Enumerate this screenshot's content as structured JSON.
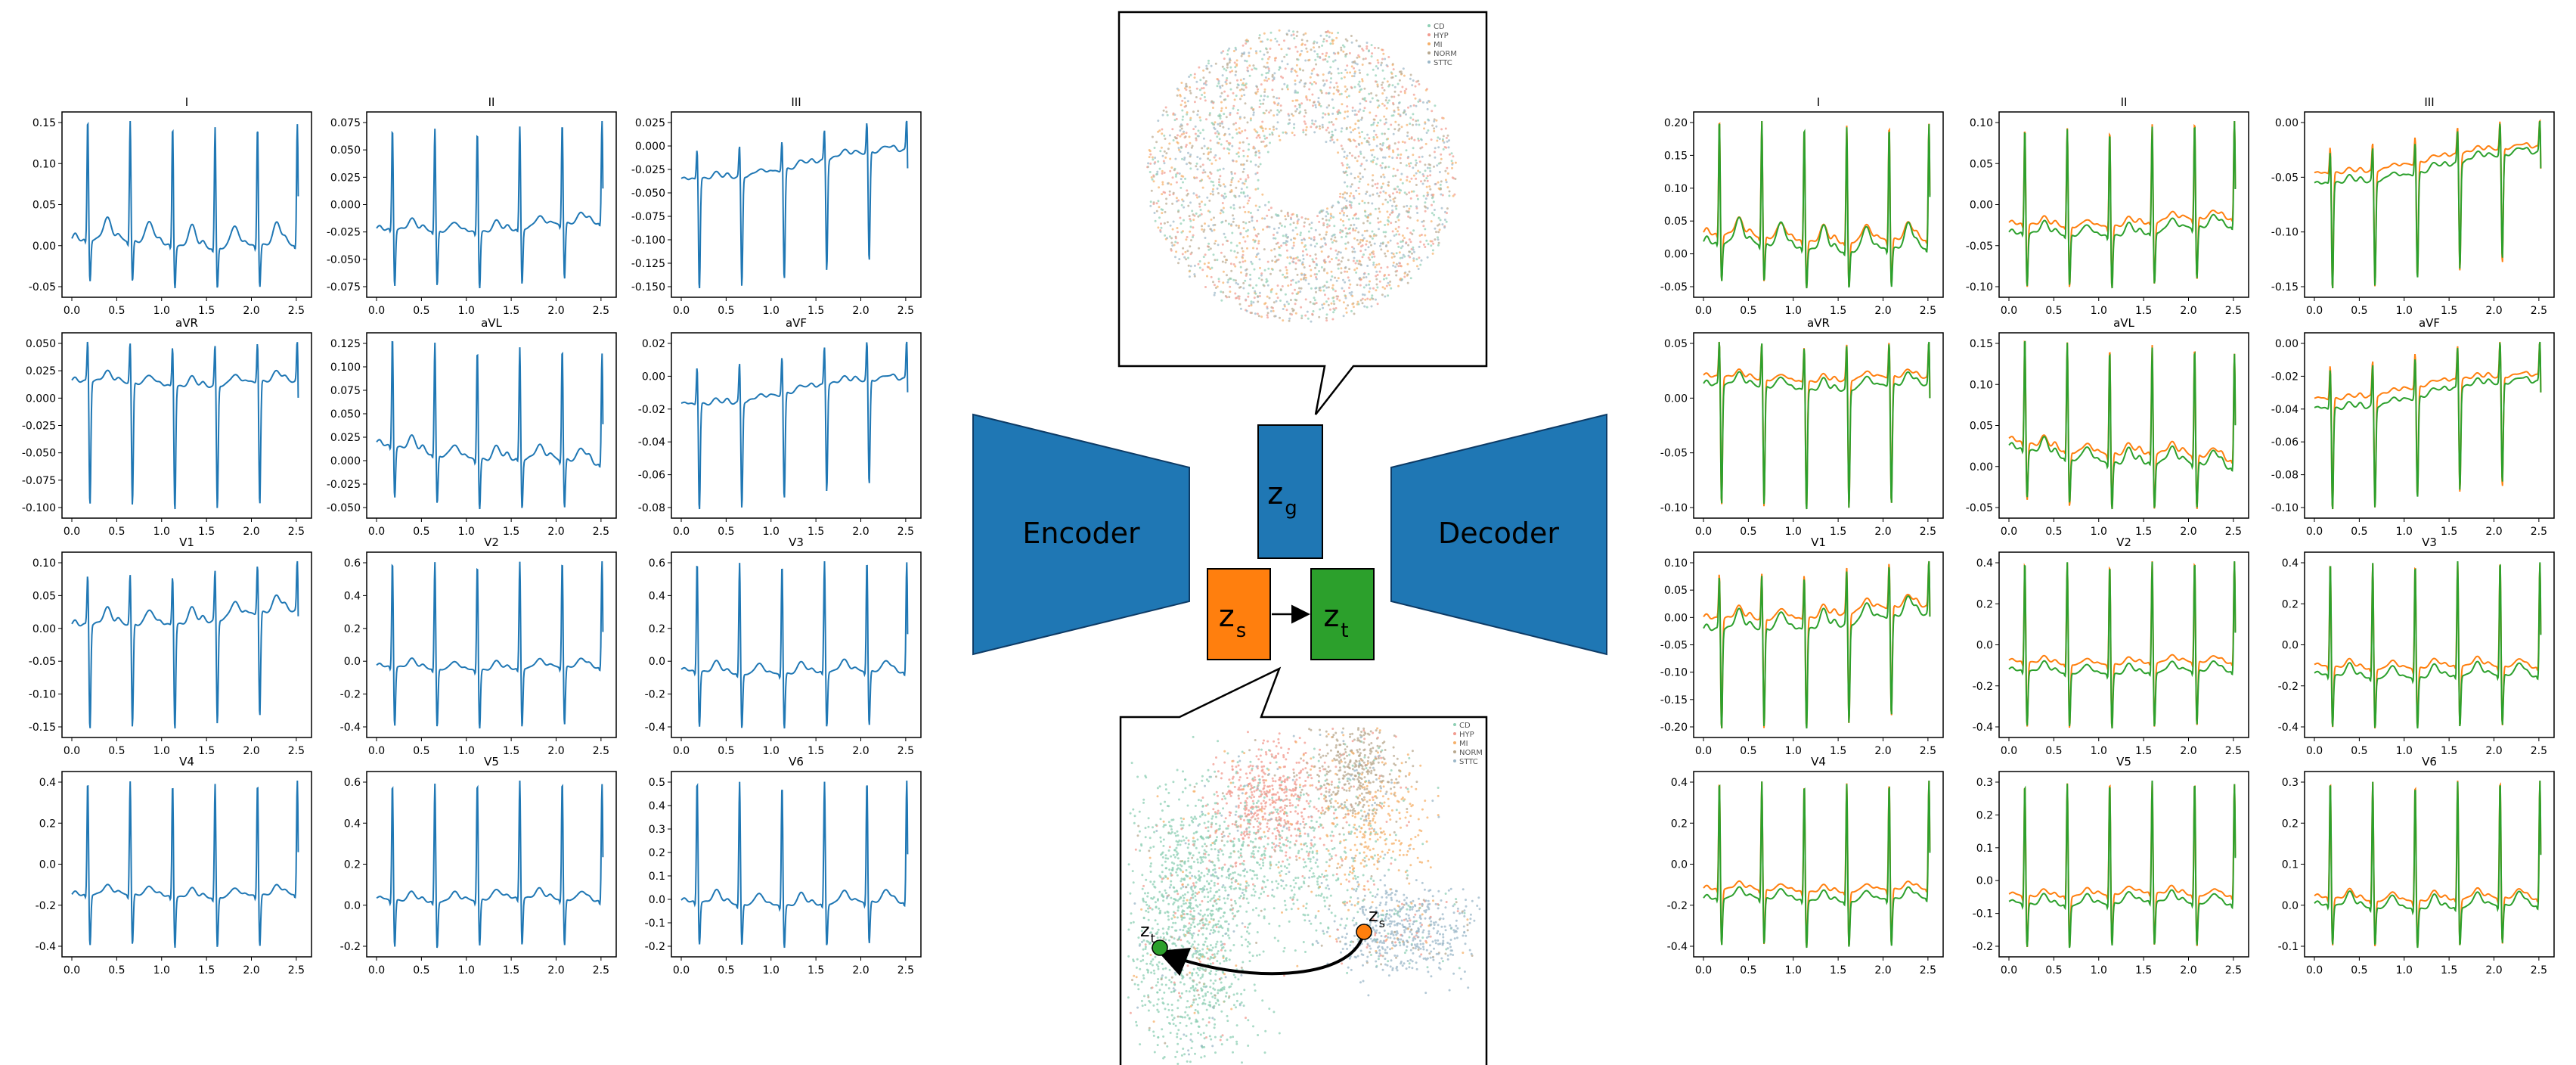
{
  "lead_names": [
    "I",
    "II",
    "III",
    "aVR",
    "aVL",
    "aVF",
    "V1",
    "V2",
    "V3",
    "V4",
    "V5",
    "V6"
  ],
  "x_ticks": [
    "0.0",
    "0.5",
    "1.0",
    "1.5",
    "2.0",
    "2.5"
  ],
  "colors": {
    "input": "#1f77b4",
    "recon_a": "#ff7f0e",
    "recon_b": "#2ca02c",
    "block": "#1f77b4",
    "zs": "#ff7f0e",
    "zt": "#2ca02c"
  },
  "input_panels": [
    {
      "lead": "I",
      "y_ticks": [
        "0.15",
        "0.10",
        "0.05",
        "0.00",
        "-0.05"
      ]
    },
    {
      "lead": "II",
      "y_ticks": [
        "0.075",
        "0.050",
        "0.025",
        "0.000",
        "-0.025",
        "-0.050",
        "-0.075"
      ]
    },
    {
      "lead": "III",
      "y_ticks": [
        "0.025",
        "0.000",
        "-0.025",
        "-0.050",
        "-0.075",
        "-0.100",
        "-0.125",
        "-0.150"
      ]
    },
    {
      "lead": "aVR",
      "y_ticks": [
        "0.050",
        "0.025",
        "0.000",
        "-0.025",
        "-0.050",
        "-0.075",
        "-0.100"
      ]
    },
    {
      "lead": "aVL",
      "y_ticks": [
        "0.125",
        "0.100",
        "0.075",
        "0.050",
        "0.025",
        "0.000",
        "-0.025",
        "-0.050"
      ]
    },
    {
      "lead": "aVF",
      "y_ticks": [
        "0.02",
        "0.00",
        "-0.02",
        "-0.04",
        "-0.06",
        "-0.08"
      ]
    },
    {
      "lead": "V1",
      "y_ticks": [
        "0.10",
        "0.05",
        "0.00",
        "-0.05",
        "-0.10",
        "-0.15"
      ]
    },
    {
      "lead": "V2",
      "y_ticks": [
        "0.6",
        "0.4",
        "0.2",
        "0.0",
        "-0.2",
        "-0.4"
      ]
    },
    {
      "lead": "V3",
      "y_ticks": [
        "0.6",
        "0.4",
        "0.2",
        "0.0",
        "-0.2",
        "-0.4"
      ]
    },
    {
      "lead": "V4",
      "y_ticks": [
        "0.4",
        "0.2",
        "0.0",
        "-0.2",
        "-0.4"
      ]
    },
    {
      "lead": "V5",
      "y_ticks": [
        "0.6",
        "0.4",
        "0.2",
        "0.0",
        "-0.2"
      ]
    },
    {
      "lead": "V6",
      "y_ticks": [
        "0.5",
        "0.4",
        "0.3",
        "0.2",
        "0.1",
        "0.0",
        "-0.1",
        "-0.2"
      ]
    }
  ],
  "output_panels": [
    {
      "lead": "I",
      "y_ticks": [
        "0.20",
        "0.15",
        "0.10",
        "0.05",
        "0.00",
        "-0.05"
      ]
    },
    {
      "lead": "II",
      "y_ticks": [
        "0.10",
        "0.05",
        "0.00",
        "-0.05",
        "-0.10"
      ]
    },
    {
      "lead": "III",
      "y_ticks": [
        "0.00",
        "-0.05",
        "-0.10",
        "-0.15"
      ]
    },
    {
      "lead": "aVR",
      "y_ticks": [
        "0.05",
        "0.00",
        "-0.05",
        "-0.10"
      ]
    },
    {
      "lead": "aVL",
      "y_ticks": [
        "0.15",
        "0.10",
        "0.05",
        "0.00",
        "-0.05"
      ]
    },
    {
      "lead": "aVF",
      "y_ticks": [
        "0.00",
        "-0.02",
        "-0.04",
        "-0.06",
        "-0.08",
        "-0.10"
      ]
    },
    {
      "lead": "V1",
      "y_ticks": [
        "0.10",
        "0.05",
        "0.00",
        "-0.05",
        "-0.10",
        "-0.15",
        "-0.20"
      ]
    },
    {
      "lead": "V2",
      "y_ticks": [
        "0.4",
        "0.2",
        "0.0",
        "-0.2",
        "-0.4"
      ]
    },
    {
      "lead": "V3",
      "y_ticks": [
        "0.4",
        "0.2",
        "0.0",
        "-0.2",
        "-0.4"
      ]
    },
    {
      "lead": "V4",
      "y_ticks": [
        "0.4",
        "0.2",
        "0.0",
        "-0.2",
        "-0.4"
      ]
    },
    {
      "lead": "V5",
      "y_ticks": [
        "0.3",
        "0.2",
        "0.1",
        "0.0",
        "-0.1",
        "-0.2"
      ]
    },
    {
      "lead": "V6",
      "y_ticks": [
        "0.3",
        "0.2",
        "0.1",
        "0.0",
        "-0.1"
      ]
    }
  ],
  "diagram": {
    "encoder_label": "Encoder",
    "decoder_label": "Decoder",
    "zg": {
      "main": "z",
      "sub": "g"
    },
    "zs": {
      "main": "z",
      "sub": "s"
    },
    "zt": {
      "main": "z",
      "sub": "t"
    }
  },
  "scatter_top": {
    "legend": [
      "CD",
      "HYP",
      "MI",
      "NORM",
      "STTC"
    ]
  },
  "scatter_bottom": {
    "legend": [
      "CD",
      "HYP",
      "MI",
      "NORM",
      "STTC"
    ],
    "point_zs": {
      "main": "z",
      "sub": "s"
    },
    "point_zt": {
      "main": "z",
      "sub": "t"
    }
  }
}
